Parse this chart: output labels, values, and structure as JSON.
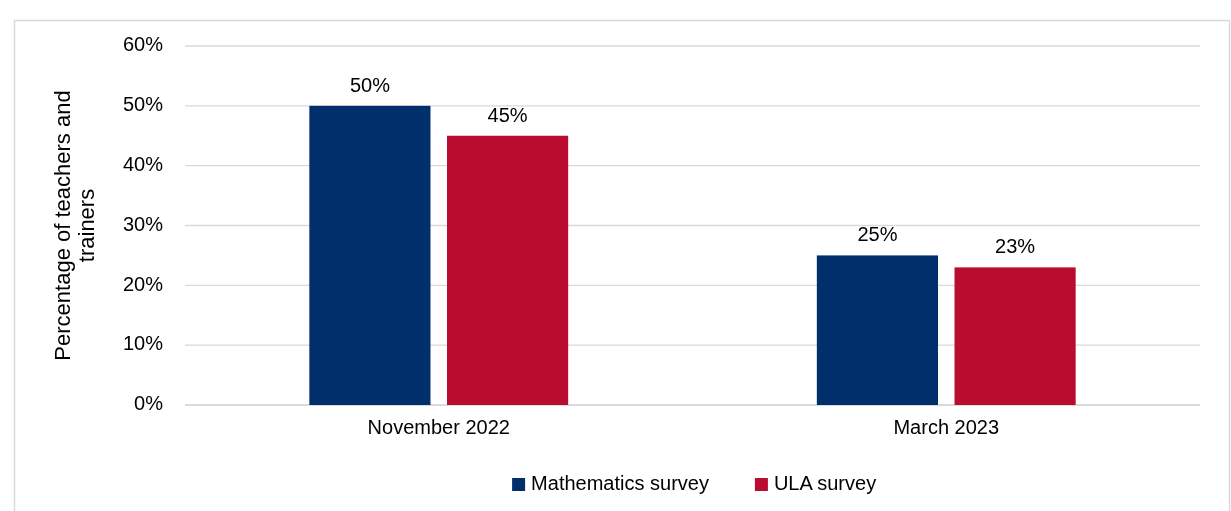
{
  "chart_data": {
    "type": "bar",
    "ylabel": "Percentage of teachers and trainers",
    "categories": [
      "November 2022",
      "March 2023"
    ],
    "series": [
      {
        "name": "Mathematics survey",
        "color": "#002f6c",
        "values": [
          50,
          25
        ],
        "value_labels": [
          "50%",
          "25%"
        ]
      },
      {
        "name": "ULA survey",
        "color": "#ba0c2f",
        "values": [
          45,
          23
        ],
        "value_labels": [
          "45%",
          "23%"
        ]
      }
    ],
    "ylim": [
      0,
      60
    ],
    "yticks": [
      {
        "value": 0,
        "label": "0%"
      },
      {
        "value": 10,
        "label": "10%"
      },
      {
        "value": 20,
        "label": "20%"
      },
      {
        "value": 30,
        "label": "30%"
      },
      {
        "value": 40,
        "label": "40%"
      },
      {
        "value": 50,
        "label": "50%"
      },
      {
        "value": 60,
        "label": "60%"
      }
    ],
    "grid": "y",
    "legend": "bottom"
  }
}
